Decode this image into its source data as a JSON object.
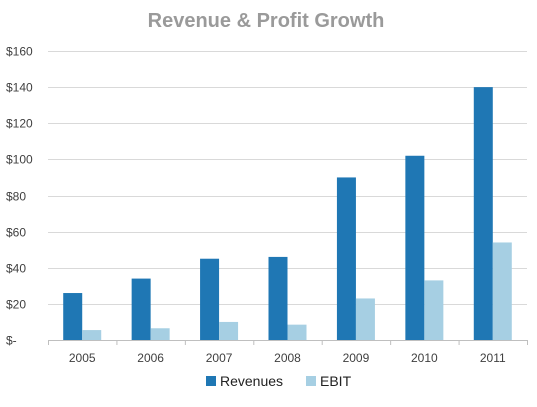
{
  "chart_data": {
    "type": "bar",
    "title": "Revenue & Profit Growth",
    "xlabel": "",
    "ylabel": "",
    "categories": [
      "2005",
      "2006",
      "2007",
      "2008",
      "2009",
      "2010",
      "2011"
    ],
    "series": [
      {
        "name": "Revenues",
        "color": "#1f77b4",
        "values": [
          26,
          34,
          45,
          46,
          90,
          102,
          140
        ]
      },
      {
        "name": "EBIT",
        "color": "#a6cfe3",
        "values": [
          5.5,
          6.5,
          10,
          8.5,
          23,
          33,
          54
        ]
      }
    ],
    "ylim": [
      0,
      160
    ],
    "yticks": [
      0,
      20,
      40,
      60,
      80,
      100,
      120,
      140,
      160
    ],
    "ytick_labels": [
      "$-",
      "$20",
      "$40",
      "$60",
      "$80",
      "$100",
      "$120",
      "$140",
      "$160"
    ],
    "grid": true,
    "legend_position": "bottom-center"
  }
}
